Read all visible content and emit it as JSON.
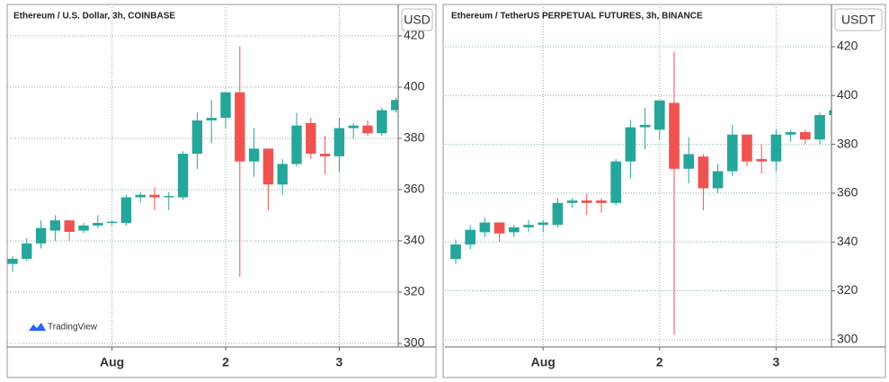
{
  "chart_data": [
    {
      "type": "candlestick",
      "title": "Ethereum / U.S. Dollar, 3h, COINBASE",
      "currency": "USD",
      "watermark": "TradingView",
      "categories": [
        null,
        null,
        null,
        null,
        null,
        null,
        null,
        "Aug",
        null,
        null,
        null,
        null,
        null,
        null,
        null,
        "2",
        null,
        null,
        null,
        null,
        null,
        null,
        null,
        "3",
        null,
        null,
        null,
        null
      ],
      "open": [
        331,
        333,
        339,
        344,
        348,
        344,
        346,
        347,
        347,
        357,
        358,
        357,
        357,
        374,
        387,
        388,
        398,
        371,
        376,
        362,
        370,
        386,
        374,
        373,
        384,
        385,
        382,
        391
      ],
      "high": [
        334,
        341,
        348,
        350,
        348,
        347,
        350,
        348,
        358,
        359,
        361,
        359,
        375,
        390,
        395,
        398,
        416,
        384,
        376,
        372,
        390,
        388,
        381,
        388,
        386,
        387,
        392,
        396
      ],
      "low": [
        328,
        332,
        337,
        340,
        340,
        343,
        345,
        346,
        346,
        355,
        352,
        352,
        356,
        368,
        378,
        384,
        326,
        365,
        352,
        358,
        369,
        372,
        366,
        367,
        380,
        381,
        381,
        390
      ],
      "close": [
        333,
        339,
        345,
        348,
        343.5,
        346,
        347,
        347.5,
        357,
        358,
        357,
        357.5,
        374,
        387,
        388,
        398,
        371,
        376,
        362,
        370,
        385,
        374,
        373,
        384,
        385,
        382,
        391,
        395
      ],
      "ylim": [
        298.6,
        431.2
      ],
      "yticks": [
        300,
        320,
        340,
        360,
        380,
        400,
        420
      ],
      "grid": true,
      "up_color": "#26a69a",
      "down_color": "#ef5350"
    },
    {
      "type": "candlestick",
      "title": "Ethereum / TetherUS PERPETUAL FUTURES, 3h, BINANCE",
      "currency": "USDT",
      "categories": [
        null,
        null,
        null,
        null,
        null,
        null,
        "Aug",
        null,
        null,
        null,
        null,
        null,
        null,
        null,
        "2",
        null,
        null,
        null,
        null,
        null,
        null,
        null,
        "3",
        null,
        null,
        null,
        null
      ],
      "open": [
        333,
        339,
        344,
        348,
        344,
        346,
        347,
        347,
        356,
        357,
        357,
        356,
        373,
        387,
        386,
        397,
        370,
        375,
        362,
        369,
        384,
        374,
        373,
        384,
        385,
        382,
        392
      ],
      "high": [
        341,
        347,
        350,
        348,
        347,
        349,
        349,
        358,
        358,
        360,
        358,
        374,
        390,
        395,
        398,
        418,
        383,
        376,
        372,
        388,
        384,
        380,
        386,
        386,
        386,
        393,
        396
      ],
      "low": [
        331,
        337,
        342,
        340,
        342,
        344,
        344,
        346,
        354,
        351,
        352,
        355,
        366,
        378,
        382,
        302,
        364,
        353,
        360,
        367,
        371,
        368,
        369,
        381,
        380,
        380,
        391
      ],
      "close": [
        339,
        345,
        348,
        343.5,
        346,
        347,
        348,
        356,
        357,
        356,
        356,
        373,
        387,
        388,
        398,
        370,
        376,
        362,
        369,
        384,
        373,
        373,
        384,
        385,
        382,
        392,
        394
      ],
      "ylim": [
        297,
        436.2
      ],
      "yticks": [
        300,
        320,
        340,
        360,
        380,
        400,
        420
      ],
      "grid": true,
      "up_color": "#26a69a",
      "down_color": "#ef5350"
    }
  ]
}
